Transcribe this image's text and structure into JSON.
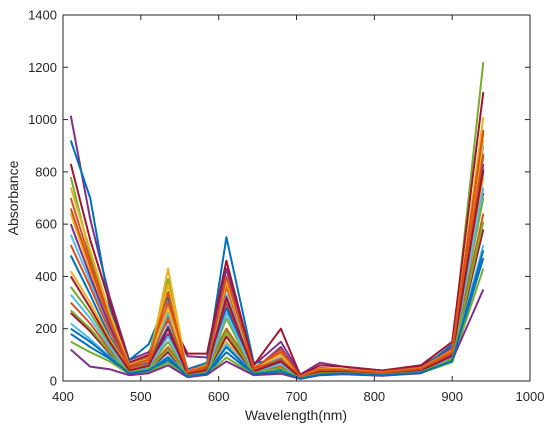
{
  "chart_data": {
    "type": "line",
    "title": "",
    "xlabel": "Wavelength(nm)",
    "ylabel": "Absorbance",
    "xlim": [
      400,
      1000
    ],
    "ylim": [
      0,
      1400
    ],
    "x_ticks": [
      400,
      500,
      600,
      700,
      800,
      900,
      1000
    ],
    "y_ticks": [
      0,
      200,
      400,
      600,
      800,
      1000,
      1200,
      1400
    ],
    "grid": false,
    "legend": "none",
    "x": [
      410,
      435,
      460,
      485,
      510,
      535,
      560,
      585,
      610,
      645,
      680,
      705,
      730,
      760,
      810,
      860,
      900,
      940
    ],
    "series": [
      {
        "color": "#7E2F8E",
        "values": [
          1015,
          620,
          320,
          80,
          110,
          230,
          95,
          90,
          430,
          60,
          150,
          25,
          70,
          55,
          40,
          55,
          130,
          720
        ]
      },
      {
        "color": "#0072BD",
        "values": [
          920,
          700,
          280,
          80,
          140,
          320,
          45,
          70,
          550,
          70,
          80,
          20,
          45,
          40,
          30,
          45,
          140,
          800
        ]
      },
      {
        "color": "#77AC30",
        "values": [
          780,
          480,
          250,
          60,
          95,
          390,
          35,
          65,
          200,
          50,
          60,
          15,
          45,
          45,
          35,
          50,
          120,
          1220
        ]
      },
      {
        "color": "#A2142F",
        "values": [
          830,
          540,
          300,
          70,
          100,
          250,
          105,
          105,
          460,
          60,
          200,
          20,
          60,
          55,
          40,
          60,
          150,
          1105
        ]
      },
      {
        "color": "#EDB120",
        "values": [
          640,
          420,
          220,
          55,
          80,
          370,
          30,
          55,
          180,
          45,
          50,
          15,
          40,
          40,
          30,
          45,
          110,
          1010
        ]
      },
      {
        "color": "#D95319",
        "values": [
          700,
          460,
          240,
          60,
          90,
          300,
          40,
          60,
          360,
          50,
          110,
          18,
          50,
          45,
          35,
          50,
          120,
          950
        ]
      },
      {
        "color": "#4DBEEE",
        "values": [
          560,
          380,
          200,
          50,
          75,
          260,
          30,
          50,
          330,
          45,
          90,
          15,
          40,
          40,
          30,
          45,
          110,
          900
        ]
      },
      {
        "color": "#0072BD",
        "values": [
          480,
          330,
          170,
          45,
          65,
          210,
          28,
          45,
          280,
          40,
          80,
          14,
          35,
          38,
          28,
          42,
          100,
          860
        ]
      },
      {
        "color": "#EDB120",
        "values": [
          420,
          300,
          160,
          42,
          60,
          430,
          25,
          42,
          150,
          38,
          60,
          13,
          35,
          36,
          27,
          40,
          95,
          780
        ]
      },
      {
        "color": "#7E2F8E",
        "values": [
          600,
          400,
          210,
          52,
          70,
          180,
          32,
          48,
          300,
          42,
          130,
          16,
          42,
          40,
          30,
          44,
          105,
          830
        ]
      },
      {
        "color": "#77AC30",
        "values": [
          360,
          260,
          140,
          38,
          55,
          150,
          24,
          40,
          240,
          35,
          70,
          12,
          32,
          34,
          26,
          38,
          90,
          700
        ]
      },
      {
        "color": "#D95319",
        "values": [
          300,
          220,
          120,
          35,
          50,
          130,
          22,
          36,
          200,
          32,
          55,
          11,
          30,
          32,
          25,
          36,
          85,
          640
        ]
      },
      {
        "color": "#A2142F",
        "values": [
          260,
          190,
          105,
          32,
          45,
          110,
          20,
          33,
          170,
          30,
          45,
          10,
          28,
          30,
          24,
          34,
          80,
          580
        ]
      },
      {
        "color": "#4DBEEE",
        "values": [
          220,
          160,
          95,
          30,
          42,
          95,
          19,
          30,
          140,
          28,
          40,
          10,
          26,
          29,
          23,
          33,
          78,
          520
        ]
      },
      {
        "color": "#0072BD",
        "values": [
          180,
          130,
          85,
          28,
          38,
          80,
          18,
          28,
          110,
          26,
          35,
          9,
          24,
          28,
          22,
          32,
          75,
          470
        ]
      },
      {
        "color": "#77AC30",
        "values": [
          150,
          110,
          75,
          26,
          35,
          70,
          17,
          26,
          90,
          24,
          32,
          9,
          23,
          27,
          21,
          31,
          72,
          430
        ]
      },
      {
        "color": "#7E2F8E",
        "values": [
          120,
          55,
          45,
          22,
          30,
          60,
          15,
          24,
          75,
          22,
          28,
          8,
          22,
          26,
          20,
          30,
          80,
          350
        ]
      },
      {
        "color": "#EDB120",
        "values": [
          740,
          500,
          260,
          62,
          85,
          280,
          36,
          58,
          380,
          48,
          100,
          17,
          46,
          44,
          33,
          48,
          115,
          920
        ]
      },
      {
        "color": "#D95319",
        "values": [
          520,
          360,
          190,
          48,
          72,
          240,
          30,
          50,
          310,
          44,
          85,
          15,
          40,
          40,
          30,
          44,
          108,
          870
        ]
      },
      {
        "color": "#4DBEEE",
        "values": [
          330,
          240,
          130,
          36,
          52,
          170,
          24,
          38,
          260,
          34,
          65,
          12,
          32,
          34,
          26,
          38,
          92,
          740
        ]
      },
      {
        "color": "#A2142F",
        "values": [
          400,
          280,
          150,
          40,
          58,
          200,
          26,
          42,
          320,
          36,
          75,
          13,
          34,
          36,
          27,
          40,
          96,
          810
        ]
      },
      {
        "color": "#77AC30",
        "values": [
          270,
          200,
          110,
          33,
          46,
          120,
          21,
          34,
          190,
          31,
          50,
          11,
          29,
          31,
          24,
          35,
          82,
          610
        ]
      },
      {
        "color": "#0072BD",
        "values": [
          200,
          150,
          90,
          29,
          40,
          90,
          18,
          29,
          130,
          27,
          38,
          9,
          25,
          29,
          22,
          32,
          76,
          500
        ]
      },
      {
        "color": "#D95319",
        "values": [
          660,
          440,
          230,
          58,
          82,
          340,
          34,
          56,
          400,
          47,
          120,
          16,
          44,
          42,
          32,
          47,
          112,
          960
        ]
      }
    ]
  }
}
